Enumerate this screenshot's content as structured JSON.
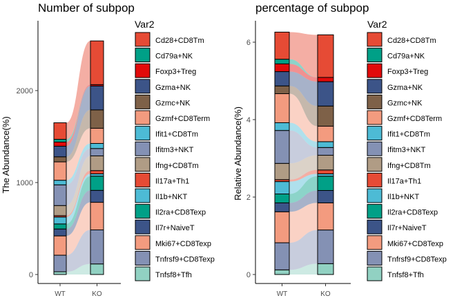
{
  "chart_data": [
    {
      "type": "bar",
      "subtype": "stacked-alluvial",
      "title": "Number of subpop",
      "xlabel": "",
      "ylabel": "The Abundance(%)",
      "categories": [
        "WT",
        "KO"
      ],
      "ylim": [
        0,
        2680
      ],
      "yticks": [
        0,
        1000,
        2000
      ],
      "grid": false,
      "legend": "right",
      "series": [
        {
          "name": "Tnfsf8+Tfh",
          "values": [
            30,
            115
          ]
        },
        {
          "name": "Tnfrsf9+CD8Texp",
          "values": [
            180,
            370
          ]
        },
        {
          "name": "Mki67+CD8Texp",
          "values": [
            210,
            300
          ]
        },
        {
          "name": "Il7r+NaiveT",
          "values": [
            75,
            130
          ]
        },
        {
          "name": "Il2ra+CD8Texp",
          "values": [
            55,
            155
          ]
        },
        {
          "name": "Il1b+NKT",
          "values": [
            75,
            25
          ]
        },
        {
          "name": "Il17a+Th1",
          "values": [
            15,
            35
          ]
        },
        {
          "name": "Ifng+CD8Tm",
          "values": [
            110,
            160
          ]
        },
        {
          "name": "Ifitm3+NKT",
          "values": [
            225,
            80
          ]
        },
        {
          "name": "Ifit1+CD8Tm",
          "values": [
            50,
            55
          ]
        },
        {
          "name": "Gzmf+CD8Term",
          "values": [
            200,
            165
          ]
        },
        {
          "name": "Gzmc+NK",
          "values": [
            55,
            200
          ]
        },
        {
          "name": "Gzma+NK",
          "values": [
            115,
            260
          ]
        },
        {
          "name": "Foxp3+Treg",
          "values": [
            45,
            15
          ]
        },
        {
          "name": "Cd79a+NK",
          "values": [
            30,
            0
          ]
        },
        {
          "name": "Cd28+CD8Tm",
          "values": [
            180,
            475
          ]
        }
      ]
    },
    {
      "type": "bar",
      "subtype": "stacked-alluvial",
      "title": "percentage of subpop",
      "xlabel": "",
      "ylabel": "Relative Abundance(%)",
      "categories": [
        "WT",
        "KO"
      ],
      "ylim": [
        0,
        6.35
      ],
      "yticks": [
        0,
        2,
        4,
        6
      ],
      "grid": false,
      "legend": "right",
      "series": [
        {
          "name": "Tnfsf8+Tfh",
          "values": [
            0.12,
            0.28
          ]
        },
        {
          "name": "Tnfrsf9+CD8Texp",
          "values": [
            0.7,
            0.87
          ]
        },
        {
          "name": "Mki67+CD8Texp",
          "values": [
            0.8,
            0.7
          ]
        },
        {
          "name": "Il7r+NaiveT",
          "values": [
            0.23,
            0.32
          ]
        },
        {
          "name": "Il2ra+CD8Texp",
          "values": [
            0.23,
            0.37
          ]
        },
        {
          "name": "Il1b+NKT",
          "values": [
            0.32,
            0.06
          ]
        },
        {
          "name": "Il17a+Th1",
          "values": [
            0.05,
            0.1
          ]
        },
        {
          "name": "Ifng+CD8Tm",
          "values": [
            0.42,
            0.38
          ]
        },
        {
          "name": "Ifitm3+NKT",
          "values": [
            0.85,
            0.2
          ]
        },
        {
          "name": "Ifit1+CD8Tm",
          "values": [
            0.2,
            0.15
          ]
        },
        {
          "name": "Gzmf+CD8Term",
          "values": [
            0.75,
            0.4
          ]
        },
        {
          "name": "Gzmc+NK",
          "values": [
            0.2,
            0.52
          ]
        },
        {
          "name": "Gzma+NK",
          "values": [
            0.37,
            0.63
          ]
        },
        {
          "name": "Foxp3+Treg",
          "values": [
            0.2,
            0.11
          ]
        },
        {
          "name": "Cd79a+NK",
          "values": [
            0.12,
            0.0
          ]
        },
        {
          "name": "Cd28+CD8Tm",
          "values": [
            0.7,
            1.1
          ]
        }
      ]
    }
  ],
  "legend": {
    "title": "Var2",
    "items": [
      {
        "label": "Cd28+CD8Tm",
        "color": "#E64B35"
      },
      {
        "label": "Cd79a+NK",
        "color": "#00A087"
      },
      {
        "label": "Foxp3+Treg",
        "color": "#E10A0A"
      },
      {
        "label": "Gzma+NK",
        "color": "#3C5488"
      },
      {
        "label": "Gzmc+NK",
        "color": "#7E6148"
      },
      {
        "label": "Gzmf+CD8Term",
        "color": "#F39B7F"
      },
      {
        "label": "Ifit1+CD8Tm",
        "color": "#4DBBD5"
      },
      {
        "label": "Ifitm3+NKT",
        "color": "#8491B4"
      },
      {
        "label": "Ifng+CD8Tm",
        "color": "#B09C85"
      },
      {
        "label": "Il17a+Th1",
        "color": "#E64B35"
      },
      {
        "label": "Il1b+NKT",
        "color": "#4DBBD5"
      },
      {
        "label": "Il2ra+CD8Texp",
        "color": "#00A087"
      },
      {
        "label": "Il7r+NaiveT",
        "color": "#3C5488"
      },
      {
        "label": "Mki67+CD8Texp",
        "color": "#F39B7F"
      },
      {
        "label": "Tnfrsf9+CD8Texp",
        "color": "#8491B4"
      },
      {
        "label": "Tnfsf8+Tfh",
        "color": "#91D1C2"
      }
    ]
  }
}
